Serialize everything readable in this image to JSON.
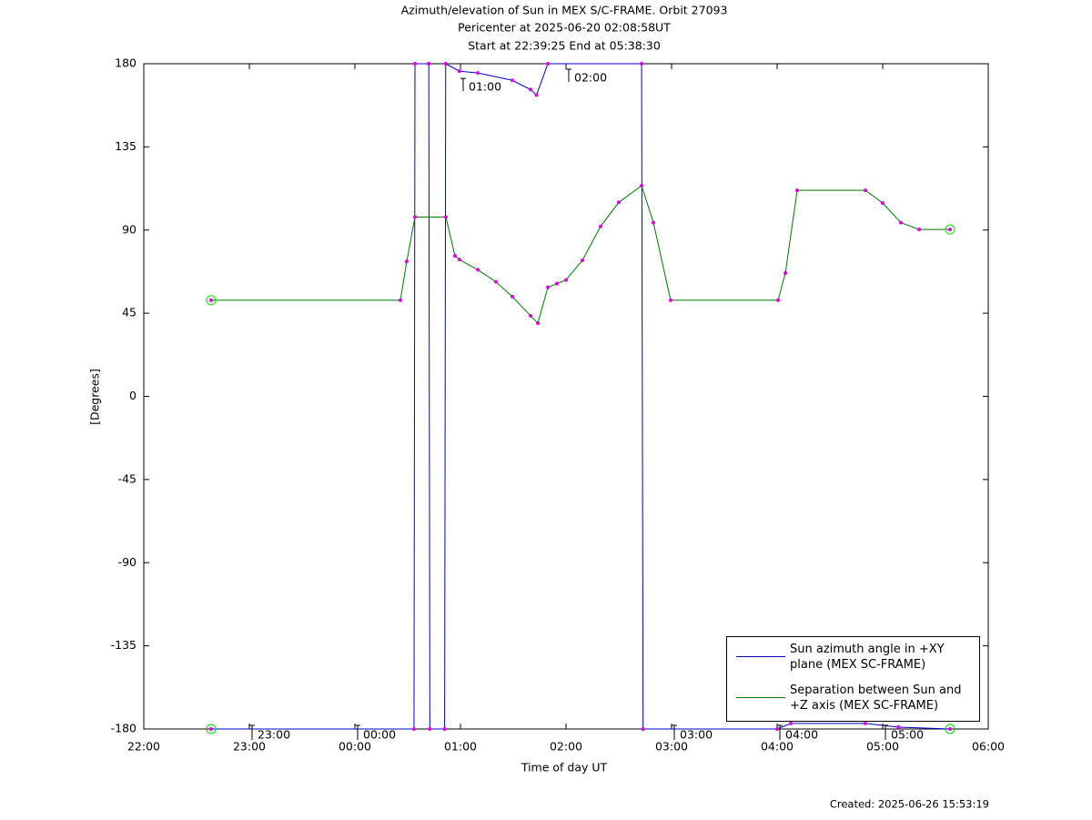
{
  "chart_data": {
    "type": "line",
    "title": [
      "Azimuth/elevation of Sun in MEX S/C-FRAME.  Orbit 27093",
      "Pericenter at 2025-06-20 02:08:58UT",
      "Start at 22:39:25 End at 05:38:30"
    ],
    "xlabel": "Time of day UT",
    "ylabel": "[Degrees]",
    "footer": "Created: 2025-06-26 15:53:19",
    "xlim": [
      22,
      30
    ],
    "xticks": [
      {
        "value": 22,
        "label": "22:00"
      },
      {
        "value": 23,
        "label": "23:00"
      },
      {
        "value": 24,
        "label": "00:00"
      },
      {
        "value": 25,
        "label": "01:00"
      },
      {
        "value": 26,
        "label": "02:00"
      },
      {
        "value": 27,
        "label": "03:00"
      },
      {
        "value": 28,
        "label": "04:00"
      },
      {
        "value": 29,
        "label": "05:00"
      },
      {
        "value": 30,
        "label": "06:00"
      }
    ],
    "ylim": [
      -180,
      180
    ],
    "yticks": [
      180,
      135,
      90,
      45,
      0,
      -45,
      -90,
      -135,
      -180
    ],
    "grid": false,
    "legend": "lower right",
    "series": [
      {
        "name": "Sun azimuth angle in +XY plane (MEX SC-FRAME)",
        "color": "#0000cc",
        "x": [
          22.638,
          24.56,
          24.569,
          24.7,
          24.71,
          24.85,
          24.86,
          24.99,
          25.164,
          25.491,
          25.664,
          25.72,
          25.828,
          26.716,
          26.73,
          28.0,
          28.13,
          28.836,
          29.15,
          29.638
        ],
        "values": [
          -180,
          -180,
          180,
          180,
          -180,
          -180,
          180,
          176,
          175,
          171,
          166,
          163,
          180,
          180,
          -180,
          -180,
          -177,
          -177,
          -179,
          -180
        ]
      },
      {
        "name": "Separation between Sun and +Z axis (MEX SC-FRAME)",
        "color": "#007700",
        "x": [
          22.638,
          24.431,
          24.491,
          24.569,
          24.862,
          24.948,
          24.991,
          25.164,
          25.336,
          25.491,
          25.664,
          25.733,
          25.828,
          25.914,
          26.0,
          26.155,
          26.328,
          26.5,
          26.716,
          26.828,
          26.991,
          28.009,
          28.078,
          28.19,
          28.836,
          29.0,
          29.172,
          29.345,
          29.638
        ],
        "values": [
          52,
          52,
          73,
          97,
          97,
          76,
          74,
          68.5,
          62,
          54,
          43.6,
          39.6,
          59,
          61,
          63,
          73.6,
          92,
          105,
          114,
          94,
          52,
          52,
          66.7,
          111.5,
          111.5,
          104.6,
          94,
          90.3,
          90.3
        ]
      }
    ],
    "annotations": [
      {
        "text": "23:00",
        "x": 23,
        "y": -180
      },
      {
        "text": "00:00",
        "x": 24,
        "y": -180
      },
      {
        "text": "01:00",
        "x": 25,
        "y": 175
      },
      {
        "text": "02:00",
        "x": 26,
        "y": 180
      },
      {
        "text": "03:00",
        "x": 27,
        "y": -180
      },
      {
        "text": "04:00",
        "x": 28,
        "y": -180
      },
      {
        "text": "05:00",
        "x": 29,
        "y": -180
      }
    ]
  }
}
